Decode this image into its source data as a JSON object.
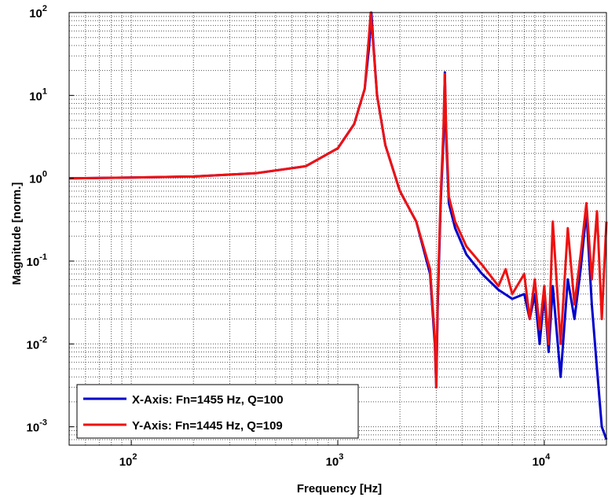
{
  "chart_data": {
    "type": "line",
    "title": "",
    "xlabel": "Frequency [Hz]",
    "ylabel": "Magnitude [norm.]",
    "xscale": "log",
    "yscale": "log",
    "xlim": [
      50,
      20000
    ],
    "ylim": [
      0.0006,
      100
    ],
    "grid": true,
    "legend_position": "bottom-left",
    "x_ticks": [
      {
        "value": 100,
        "mantissa": "10",
        "exp": "2"
      },
      {
        "value": 1000,
        "mantissa": "10",
        "exp": "3"
      },
      {
        "value": 10000,
        "mantissa": "10",
        "exp": "4"
      }
    ],
    "y_ticks": [
      {
        "value": 0.001,
        "mantissa": "10",
        "exp": "-3"
      },
      {
        "value": 0.01,
        "mantissa": "10",
        "exp": "-2"
      },
      {
        "value": 0.1,
        "mantissa": "10",
        "exp": "-1"
      },
      {
        "value": 1,
        "mantissa": "10",
        "exp": "0"
      },
      {
        "value": 10,
        "mantissa": "10",
        "exp": "1"
      },
      {
        "value": 100,
        "mantissa": "10",
        "exp": "2"
      }
    ],
    "series": [
      {
        "name": "X-Axis: Fn=1455 Hz, Q=100",
        "color": "#0000cc",
        "x": [
          50,
          100,
          200,
          400,
          700,
          1000,
          1200,
          1350,
          1420,
          1455,
          1490,
          1550,
          1700,
          2000,
          2400,
          2800,
          2950,
          3000,
          3050,
          3150,
          3250,
          3300,
          3350,
          3450,
          3700,
          4200,
          5000,
          6000,
          7000,
          8000,
          8500,
          9000,
          9500,
          10000,
          10500,
          11000,
          12000,
          13000,
          14000,
          15000,
          16000,
          17000,
          18000,
          19000,
          20000
        ],
        "y": [
          1.0,
          1.02,
          1.05,
          1.15,
          1.4,
          2.3,
          4.5,
          12,
          40,
          100,
          40,
          10,
          2.5,
          0.7,
          0.3,
          0.07,
          0.01,
          0.003,
          0.03,
          0.5,
          3,
          19,
          3,
          0.5,
          0.25,
          0.12,
          0.07,
          0.045,
          0.035,
          0.04,
          0.02,
          0.04,
          0.01,
          0.04,
          0.008,
          0.05,
          0.004,
          0.06,
          0.02,
          0.08,
          0.4,
          0.03,
          0.005,
          0.001,
          0.0007
        ]
      },
      {
        "name": "Y-Axis: Fn=1445 Hz, Q=109",
        "color": "#ee1111",
        "x": [
          50,
          100,
          200,
          400,
          700,
          1000,
          1200,
          1350,
          1410,
          1445,
          1480,
          1550,
          1700,
          2000,
          2400,
          2800,
          2950,
          3000,
          3050,
          3150,
          3250,
          3300,
          3350,
          3450,
          3700,
          4200,
          5000,
          6000,
          6500,
          7000,
          8000,
          8500,
          9000,
          9500,
          10000,
          10500,
          11000,
          12000,
          13000,
          14000,
          15000,
          16000,
          17000,
          18000,
          19000,
          20000
        ],
        "y": [
          1.0,
          1.02,
          1.05,
          1.15,
          1.4,
          2.3,
          4.5,
          12,
          45,
          100,
          45,
          10,
          2.5,
          0.7,
          0.3,
          0.08,
          0.012,
          0.003,
          0.04,
          0.6,
          4,
          18,
          4,
          0.6,
          0.3,
          0.15,
          0.09,
          0.05,
          0.08,
          0.04,
          0.07,
          0.02,
          0.06,
          0.015,
          0.05,
          0.01,
          0.3,
          0.01,
          0.25,
          0.03,
          0.12,
          0.5,
          0.06,
          0.4,
          0.02,
          0.3
        ]
      }
    ]
  }
}
